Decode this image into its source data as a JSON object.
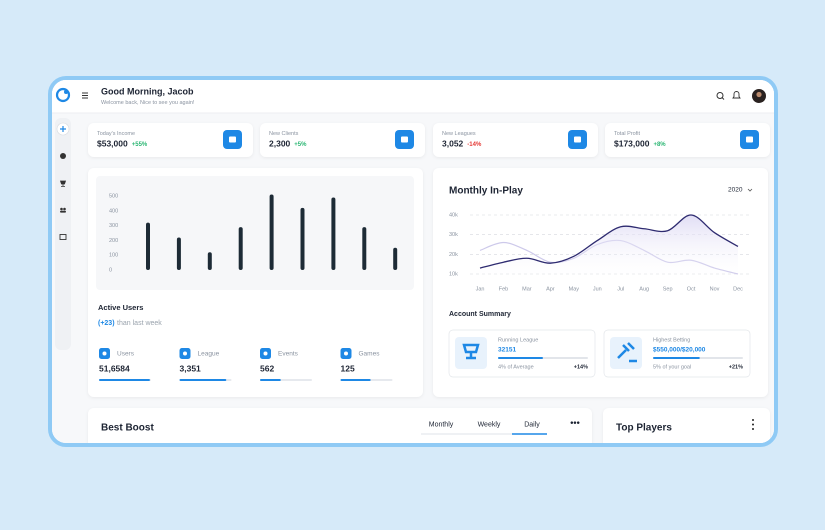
{
  "header": {
    "greeting": "Good Morning, Jacob",
    "subtitle": "Welcome back, Nice to see you again!"
  },
  "stats": [
    {
      "label": "Today's Income",
      "value": "$53,000",
      "change": "+55%"
    },
    {
      "label": "New Clients",
      "value": "2,300",
      "change": "+5%"
    },
    {
      "label": "New Leagues",
      "value": "3,052",
      "change": "-14%"
    },
    {
      "label": "Total Profit",
      "value": "$173,000",
      "change": "+8%"
    }
  ],
  "active_users_chart": {
    "type": "bar",
    "values": [
      320,
      220,
      120,
      290,
      510,
      420,
      490,
      290,
      150
    ],
    "color": "#1d2b36",
    "ylim": [
      0,
      500
    ],
    "yticks": [
      0,
      100,
      200,
      300,
      400,
      500
    ]
  },
  "active_users": {
    "title": "Active Users",
    "change": "(+23)",
    "change_note": "than last week",
    "metrics": [
      {
        "label": "Users",
        "value": "51,6584",
        "progress": 98
      },
      {
        "label": "League",
        "value": "3,351",
        "progress": 90
      },
      {
        "label": "Events",
        "value": "562",
        "progress": 40
      },
      {
        "label": "Games",
        "value": "125",
        "progress": 58
      }
    ]
  },
  "monthly_in_play": {
    "type": "line",
    "title": "Monthly In-Play",
    "year": "2020",
    "categories": [
      "Jan",
      "Feb",
      "Mar",
      "Apr",
      "May",
      "Jun",
      "Jul",
      "Aug",
      "Sep",
      "Oct",
      "Nov",
      "Dec"
    ],
    "series": [
      {
        "color": "#2e2b70",
        "values": [
          13000,
          16000,
          18000,
          15500,
          19000,
          27000,
          34000,
          33000,
          32000,
          40000,
          31000,
          24000
        ]
      },
      {
        "color": "#cdc9ea",
        "values": [
          22000,
          26000,
          22000,
          16000,
          18000,
          25000,
          27000,
          22000,
          16000,
          17000,
          13000,
          10000
        ]
      }
    ],
    "ylim": [
      10000,
      40000
    ],
    "yticks": [
      {
        "value": 10000,
        "label": "10k"
      },
      {
        "value": 20000,
        "label": "20k"
      },
      {
        "value": 30000,
        "label": "30k"
      },
      {
        "value": 40000,
        "label": "40k"
      }
    ],
    "grid": true
  },
  "account_summary": {
    "title": "Account Summary",
    "items": [
      {
        "label": "Running League",
        "value": "32151",
        "note": "4% of Average",
        "change": "+14%",
        "progress": 50
      },
      {
        "label": "Highest Betting",
        "value": "$550,000/$20,000",
        "note": "5% of your goal",
        "change": "+21%",
        "progress": 52
      }
    ]
  },
  "best_boost": {
    "title": "Best Boost",
    "tabs": [
      "Monthly",
      "Weekly",
      "Daily"
    ],
    "active_tab": 2
  },
  "top_players": {
    "title": "Top Players"
  }
}
